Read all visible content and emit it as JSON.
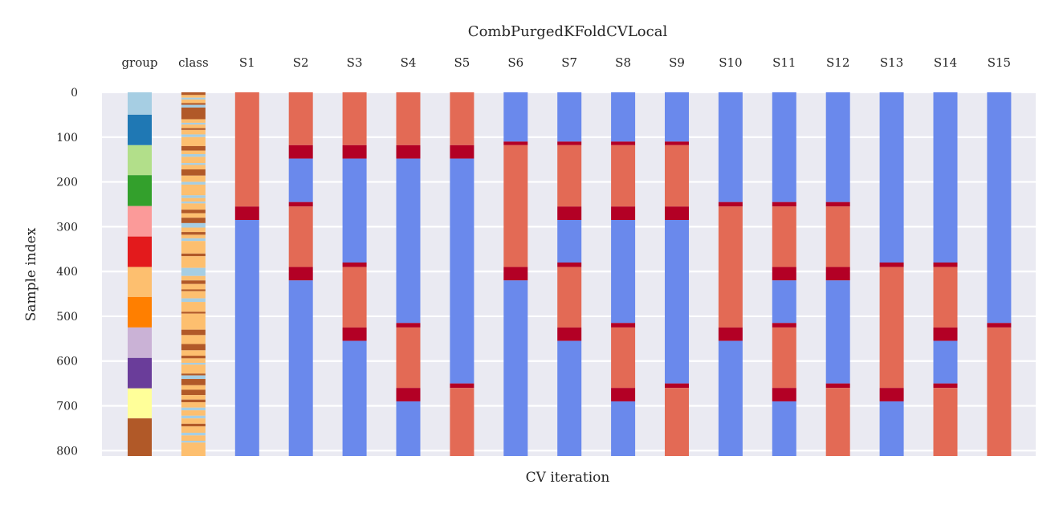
{
  "chart_data": {
    "type": "heatmap",
    "title": "CombPurgedKFoldCVLocal",
    "xlabel": "CV iteration",
    "ylabel": "Sample index",
    "ylim": [
      0,
      812
    ],
    "yticks": [
      0,
      100,
      200,
      300,
      400,
      500,
      600,
      700,
      800
    ],
    "grid": true,
    "background": "#eaeaf2",
    "colors": {
      "train": "#6a89ec",
      "test": "#e36a55",
      "purged": "#b30025"
    },
    "columns": [
      "group",
      "class",
      "S1",
      "S2",
      "S3",
      "S4",
      "S5",
      "S6",
      "S7",
      "S8",
      "S9",
      "S10",
      "S11",
      "S12",
      "S13",
      "S14",
      "S15"
    ],
    "group_segments": [
      {
        "start": 0,
        "end": 50,
        "color": "#a6cee3"
      },
      {
        "start": 50,
        "end": 118,
        "color": "#1f78b4"
      },
      {
        "start": 118,
        "end": 185,
        "color": "#b2df8a"
      },
      {
        "start": 185,
        "end": 254,
        "color": "#33a02c"
      },
      {
        "start": 254,
        "end": 322,
        "color": "#fb9a99"
      },
      {
        "start": 322,
        "end": 390,
        "color": "#e31a1c"
      },
      {
        "start": 390,
        "end": 457,
        "color": "#fdbf6f"
      },
      {
        "start": 457,
        "end": 525,
        "color": "#ff7f00"
      },
      {
        "start": 525,
        "end": 593,
        "color": "#cab2d6"
      },
      {
        "start": 593,
        "end": 661,
        "color": "#6a3d9a"
      },
      {
        "start": 661,
        "end": 728,
        "color": "#ffff99"
      },
      {
        "start": 728,
        "end": 812,
        "color": "#b15928"
      }
    ],
    "class_segments": [
      {
        "start": 0,
        "end": 6,
        "color": "#b15928"
      },
      {
        "start": 6,
        "end": 12,
        "color": "#fdbf6f"
      },
      {
        "start": 12,
        "end": 16,
        "color": "#a6cee3"
      },
      {
        "start": 16,
        "end": 24,
        "color": "#fdbf6f"
      },
      {
        "start": 24,
        "end": 28,
        "color": "#b15928"
      },
      {
        "start": 28,
        "end": 34,
        "color": "#a6cee3"
      },
      {
        "start": 34,
        "end": 60,
        "color": "#b15928"
      },
      {
        "start": 60,
        "end": 68,
        "color": "#fdbf6f"
      },
      {
        "start": 68,
        "end": 72,
        "color": "#a6cee3"
      },
      {
        "start": 72,
        "end": 80,
        "color": "#fdbf6f"
      },
      {
        "start": 80,
        "end": 84,
        "color": "#b15928"
      },
      {
        "start": 84,
        "end": 94,
        "color": "#fdbf6f"
      },
      {
        "start": 94,
        "end": 100,
        "color": "#a6cee3"
      },
      {
        "start": 100,
        "end": 120,
        "color": "#fdbf6f"
      },
      {
        "start": 120,
        "end": 130,
        "color": "#b15928"
      },
      {
        "start": 130,
        "end": 138,
        "color": "#fdbf6f"
      },
      {
        "start": 138,
        "end": 144,
        "color": "#a6cee3"
      },
      {
        "start": 144,
        "end": 158,
        "color": "#fdbf6f"
      },
      {
        "start": 158,
        "end": 162,
        "color": "#a6cee3"
      },
      {
        "start": 162,
        "end": 172,
        "color": "#fdbf6f"
      },
      {
        "start": 172,
        "end": 186,
        "color": "#b15928"
      },
      {
        "start": 186,
        "end": 200,
        "color": "#fdbf6f"
      },
      {
        "start": 200,
        "end": 206,
        "color": "#a6cee3"
      },
      {
        "start": 206,
        "end": 230,
        "color": "#fdbf6f"
      },
      {
        "start": 230,
        "end": 236,
        "color": "#a6cee3"
      },
      {
        "start": 236,
        "end": 244,
        "color": "#fdbf6f"
      },
      {
        "start": 244,
        "end": 248,
        "color": "#a6cee3"
      },
      {
        "start": 248,
        "end": 262,
        "color": "#fdbf6f"
      },
      {
        "start": 262,
        "end": 270,
        "color": "#b15928"
      },
      {
        "start": 270,
        "end": 280,
        "color": "#fdbf6f"
      },
      {
        "start": 280,
        "end": 292,
        "color": "#b15928"
      },
      {
        "start": 292,
        "end": 302,
        "color": "#a6cee3"
      },
      {
        "start": 302,
        "end": 312,
        "color": "#fdbf6f"
      },
      {
        "start": 312,
        "end": 318,
        "color": "#b15928"
      },
      {
        "start": 318,
        "end": 326,
        "color": "#fdbf6f"
      },
      {
        "start": 326,
        "end": 332,
        "color": "#a6cee3"
      },
      {
        "start": 332,
        "end": 360,
        "color": "#fdbf6f"
      },
      {
        "start": 360,
        "end": 366,
        "color": "#b15928"
      },
      {
        "start": 366,
        "end": 392,
        "color": "#fdbf6f"
      },
      {
        "start": 392,
        "end": 410,
        "color": "#a6cee3"
      },
      {
        "start": 410,
        "end": 420,
        "color": "#fdbf6f"
      },
      {
        "start": 420,
        "end": 428,
        "color": "#b15928"
      },
      {
        "start": 428,
        "end": 440,
        "color": "#fdbf6f"
      },
      {
        "start": 440,
        "end": 444,
        "color": "#b15928"
      },
      {
        "start": 444,
        "end": 460,
        "color": "#fdbf6f"
      },
      {
        "start": 460,
        "end": 468,
        "color": "#a6cee3"
      },
      {
        "start": 468,
        "end": 490,
        "color": "#fdbf6f"
      },
      {
        "start": 490,
        "end": 494,
        "color": "#b15928"
      },
      {
        "start": 494,
        "end": 530,
        "color": "#fdbf6f"
      },
      {
        "start": 530,
        "end": 542,
        "color": "#b15928"
      },
      {
        "start": 542,
        "end": 562,
        "color": "#fdbf6f"
      },
      {
        "start": 562,
        "end": 576,
        "color": "#b15928"
      },
      {
        "start": 576,
        "end": 588,
        "color": "#fdbf6f"
      },
      {
        "start": 588,
        "end": 594,
        "color": "#b15928"
      },
      {
        "start": 594,
        "end": 604,
        "color": "#fdbf6f"
      },
      {
        "start": 604,
        "end": 608,
        "color": "#a6cee3"
      },
      {
        "start": 608,
        "end": 628,
        "color": "#fdbf6f"
      },
      {
        "start": 628,
        "end": 632,
        "color": "#b15928"
      },
      {
        "start": 632,
        "end": 640,
        "color": "#a6cee3"
      },
      {
        "start": 640,
        "end": 654,
        "color": "#b15928"
      },
      {
        "start": 654,
        "end": 664,
        "color": "#fdbf6f"
      },
      {
        "start": 664,
        "end": 676,
        "color": "#b15928"
      },
      {
        "start": 676,
        "end": 686,
        "color": "#fdbf6f"
      },
      {
        "start": 686,
        "end": 692,
        "color": "#b15928"
      },
      {
        "start": 692,
        "end": 704,
        "color": "#fdbf6f"
      },
      {
        "start": 704,
        "end": 710,
        "color": "#a6cee3"
      },
      {
        "start": 710,
        "end": 722,
        "color": "#fdbf6f"
      },
      {
        "start": 722,
        "end": 728,
        "color": "#a6cee3"
      },
      {
        "start": 728,
        "end": 740,
        "color": "#fdbf6f"
      },
      {
        "start": 740,
        "end": 746,
        "color": "#b15928"
      },
      {
        "start": 746,
        "end": 760,
        "color": "#fdbf6f"
      },
      {
        "start": 760,
        "end": 766,
        "color": "#a6cee3"
      },
      {
        "start": 766,
        "end": 778,
        "color": "#fdbf6f"
      },
      {
        "start": 778,
        "end": 782,
        "color": "#a6cee3"
      },
      {
        "start": 782,
        "end": 812,
        "color": "#fdbf6f"
      }
    ],
    "splits": [
      {
        "name": "S1",
        "segments": [
          [
            "test",
            0,
            255
          ],
          [
            "purged",
            255,
            285
          ],
          [
            "train",
            285,
            812
          ]
        ]
      },
      {
        "name": "S2",
        "segments": [
          [
            "test",
            0,
            118
          ],
          [
            "purged",
            118,
            148
          ],
          [
            "train",
            148,
            245
          ],
          [
            "purged",
            245,
            255
          ],
          [
            "test",
            255,
            390
          ],
          [
            "purged",
            390,
            420
          ],
          [
            "train",
            420,
            812
          ]
        ]
      },
      {
        "name": "S3",
        "segments": [
          [
            "test",
            0,
            118
          ],
          [
            "purged",
            118,
            148
          ],
          [
            "train",
            148,
            380
          ],
          [
            "purged",
            380,
            390
          ],
          [
            "test",
            390,
            525
          ],
          [
            "purged",
            525,
            555
          ],
          [
            "train",
            555,
            812
          ]
        ]
      },
      {
        "name": "S4",
        "segments": [
          [
            "test",
            0,
            118
          ],
          [
            "purged",
            118,
            148
          ],
          [
            "train",
            148,
            515
          ],
          [
            "purged",
            515,
            525
          ],
          [
            "test",
            525,
            660
          ],
          [
            "purged",
            660,
            690
          ],
          [
            "train",
            690,
            812
          ]
        ]
      },
      {
        "name": "S5",
        "segments": [
          [
            "test",
            0,
            118
          ],
          [
            "purged",
            118,
            148
          ],
          [
            "train",
            148,
            650
          ],
          [
            "purged",
            650,
            660
          ],
          [
            "test",
            660,
            812
          ]
        ]
      },
      {
        "name": "S6",
        "segments": [
          [
            "train",
            0,
            110
          ],
          [
            "purged",
            110,
            118
          ],
          [
            "test",
            118,
            390
          ],
          [
            "purged",
            390,
            420
          ],
          [
            "train",
            420,
            812
          ]
        ]
      },
      {
        "name": "S7",
        "segments": [
          [
            "train",
            0,
            110
          ],
          [
            "purged",
            110,
            118
          ],
          [
            "test",
            118,
            255
          ],
          [
            "purged",
            255,
            285
          ],
          [
            "train",
            285,
            380
          ],
          [
            "purged",
            380,
            390
          ],
          [
            "test",
            390,
            525
          ],
          [
            "purged",
            525,
            555
          ],
          [
            "train",
            555,
            812
          ]
        ]
      },
      {
        "name": "S8",
        "segments": [
          [
            "train",
            0,
            110
          ],
          [
            "purged",
            110,
            118
          ],
          [
            "test",
            118,
            255
          ],
          [
            "purged",
            255,
            285
          ],
          [
            "train",
            285,
            515
          ],
          [
            "purged",
            515,
            525
          ],
          [
            "test",
            525,
            660
          ],
          [
            "purged",
            660,
            690
          ],
          [
            "train",
            690,
            812
          ]
        ]
      },
      {
        "name": "S9",
        "segments": [
          [
            "train",
            0,
            110
          ],
          [
            "purged",
            110,
            118
          ],
          [
            "test",
            118,
            255
          ],
          [
            "purged",
            255,
            285
          ],
          [
            "train",
            285,
            650
          ],
          [
            "purged",
            650,
            660
          ],
          [
            "test",
            660,
            812
          ]
        ]
      },
      {
        "name": "S10",
        "segments": [
          [
            "train",
            0,
            245
          ],
          [
            "purged",
            245,
            255
          ],
          [
            "test",
            255,
            525
          ],
          [
            "purged",
            525,
            555
          ],
          [
            "train",
            555,
            812
          ]
        ]
      },
      {
        "name": "S11",
        "segments": [
          [
            "train",
            0,
            245
          ],
          [
            "purged",
            245,
            255
          ],
          [
            "test",
            255,
            390
          ],
          [
            "purged",
            390,
            420
          ],
          [
            "train",
            420,
            515
          ],
          [
            "purged",
            515,
            525
          ],
          [
            "test",
            525,
            660
          ],
          [
            "purged",
            660,
            690
          ],
          [
            "train",
            690,
            812
          ]
        ]
      },
      {
        "name": "S12",
        "segments": [
          [
            "train",
            0,
            245
          ],
          [
            "purged",
            245,
            255
          ],
          [
            "test",
            255,
            390
          ],
          [
            "purged",
            390,
            420
          ],
          [
            "train",
            420,
            650
          ],
          [
            "purged",
            650,
            660
          ],
          [
            "test",
            660,
            812
          ]
        ]
      },
      {
        "name": "S13",
        "segments": [
          [
            "train",
            0,
            380
          ],
          [
            "purged",
            380,
            390
          ],
          [
            "test",
            390,
            660
          ],
          [
            "purged",
            660,
            690
          ],
          [
            "train",
            690,
            812
          ]
        ]
      },
      {
        "name": "S14",
        "segments": [
          [
            "train",
            0,
            380
          ],
          [
            "purged",
            380,
            390
          ],
          [
            "test",
            390,
            525
          ],
          [
            "purged",
            525,
            555
          ],
          [
            "train",
            555,
            650
          ],
          [
            "purged",
            650,
            660
          ],
          [
            "test",
            660,
            812
          ]
        ]
      },
      {
        "name": "S15",
        "segments": [
          [
            "train",
            0,
            515
          ],
          [
            "purged",
            515,
            525
          ],
          [
            "test",
            525,
            812
          ]
        ]
      }
    ]
  }
}
